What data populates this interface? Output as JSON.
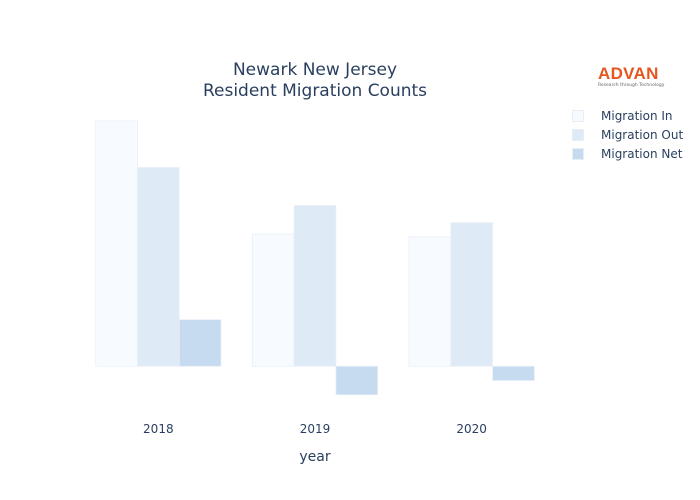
{
  "chart_data": {
    "type": "bar",
    "title": "Newark New Jersey",
    "subtitle": "Resident Migration Counts",
    "xlabel": "year",
    "ylabel": "",
    "categories": [
      "2018",
      "2019",
      "2020"
    ],
    "series": [
      {
        "name": "Migration In",
        "color": "#f7fbff",
        "values": [
          2580,
          1390,
          1360
        ]
      },
      {
        "name": "Migration Out",
        "color": "#deebf7",
        "values": [
          2090,
          1690,
          1510
        ]
      },
      {
        "name": "Migration Net",
        "color": "#c6dbef",
        "values": [
          490,
          -300,
          -150
        ]
      }
    ],
    "ylim": [
      -460,
      2800
    ],
    "yaxis_visible": false,
    "grid": false,
    "legend_position": "top-right"
  },
  "logo": {
    "word": "ADVAN",
    "tagline": "Research through Technology"
  }
}
